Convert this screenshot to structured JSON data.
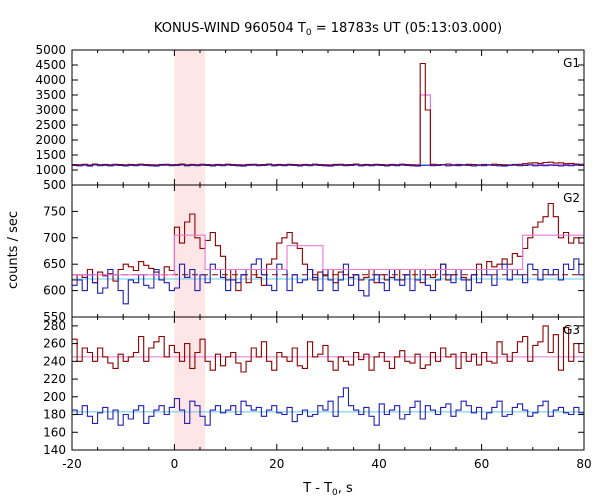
{
  "chart_data": {
    "type": "line",
    "title": {
      "prefix": "KONUS-WIND 960504 T",
      "subscript": "0",
      "suffix": " = 18783s UT (05:13:03.000)"
    },
    "xlabel": {
      "prefix": "T - T",
      "subscript": "0",
      "suffix": ", s"
    },
    "ylabel": "counts / sec",
    "xlim": [
      -20,
      80
    ],
    "xticks": [
      -20,
      0,
      20,
      40,
      60,
      80
    ],
    "highlight_interval": [
      0,
      6
    ],
    "colors": {
      "dark_red": "#8b0000",
      "blue": "#1f1fb4",
      "pink": "#e878d8",
      "cyan": "#66c8e8",
      "shade": "#ffe6e6"
    },
    "panels": [
      {
        "label": "G1",
        "ylim": [
          500,
          5000
        ],
        "yticks": [
          500,
          1000,
          1500,
          2000,
          2500,
          3000,
          3500,
          4000,
          4500,
          5000
        ],
        "bin_start": -20,
        "bin_width": 1,
        "series": [
          {
            "color_key": "dark_red",
            "values": [
              1180,
              1170,
              1190,
              1160,
              1200,
              1175,
              1185,
              1170,
              1190,
              1180,
              1165,
              1185,
              1175,
              1195,
              1180,
              1170,
              1160,
              1185,
              1190,
              1175,
              1180,
              1200,
              1170,
              1185,
              1175,
              1190,
              1180,
              1165,
              1185,
              1175,
              1195,
              1180,
              1170,
              1160,
              1185,
              1190,
              1175,
              1180,
              1200,
              1170,
              1185,
              1175,
              1190,
              1180,
              1165,
              1185,
              1175,
              1195,
              1180,
              1170,
              1160,
              1185,
              1190,
              1175,
              1180,
              1200,
              1170,
              1185,
              1175,
              1190,
              1180,
              1165,
              1185,
              1175,
              1195,
              1180,
              1170,
              1160,
              4550,
              3000,
              1190,
              1175,
              1180,
              1200,
              1170,
              1185,
              1175,
              1190,
              1180,
              1165,
              1185,
              1175,
              1195,
              1180,
              1170,
              1160,
              1185,
              1190,
              1210,
              1230,
              1240,
              1220,
              1250,
              1260,
              1230,
              1240,
              1210,
              1220,
              1200,
              1190
            ]
          },
          {
            "color_key": "blue",
            "values": [
              1150,
              1140,
              1160,
              1130,
              1170,
              1145,
              1155,
              1140,
              1160,
              1150,
              1135,
              1155,
              1145,
              1165,
              1150,
              1140,
              1130,
              1155,
              1160,
              1145,
              1150,
              1170,
              1140,
              1155,
              1145,
              1160,
              1150,
              1135,
              1155,
              1145,
              1165,
              1150,
              1140,
              1130,
              1155,
              1160,
              1145,
              1150,
              1170,
              1140,
              1155,
              1145,
              1160,
              1150,
              1135,
              1155,
              1145,
              1165,
              1150,
              1140,
              1130,
              1155,
              1160,
              1145,
              1150,
              1170,
              1140,
              1155,
              1145,
              1160,
              1150,
              1135,
              1155,
              1145,
              1165,
              1150,
              1140,
              1130,
              1155,
              1160,
              1145,
              1150,
              1170,
              1140,
              1155,
              1145,
              1160,
              1150,
              1135,
              1155,
              1145,
              1165,
              1150,
              1140,
              1130,
              1155,
              1160,
              1145,
              1150,
              1170,
              1140,
              1155,
              1145,
              1160,
              1150,
              1135,
              1155,
              1145,
              1165,
              1150
            ]
          }
        ],
        "step_series": [
          {
            "color_key": "pink",
            "edges": [
              -20,
              48,
              50,
              80
            ],
            "values": [
              1180,
              3500,
              1180
            ]
          }
        ],
        "levels": [
          {
            "color_key": "cyan",
            "value": 1165
          }
        ]
      },
      {
        "label": "G2",
        "ylim": [
          550,
          800
        ],
        "yticks": [
          550,
          600,
          650,
          700,
          750
        ],
        "bin_start": -20,
        "bin_width": 1,
        "series": [
          {
            "color_key": "dark_red",
            "values": [
              620,
              630,
              625,
              640,
              615,
              635,
              628,
              632,
              618,
              640,
              650,
              645,
              638,
              655,
              648,
              642,
              635,
              620,
              645,
              638,
              720,
              690,
              730,
              745,
              700,
              680,
              695,
              710,
              685,
              665,
              620,
              640,
              600,
              630,
              615,
              640,
              625,
              610,
              650,
              660,
              690,
              700,
              710,
              690,
              680,
              650,
              640,
              620,
              635,
              628,
              640,
              615,
              635,
              640,
              625,
              630,
              620,
              625,
              640,
              615,
              630,
              620,
              625,
              640,
              620,
              630,
              640,
              620,
              615,
              630,
              625,
              640,
              650,
              620,
              630,
              640,
              625,
              620,
              630,
              650,
              640,
              655,
              645,
              650,
              660,
              650,
              670,
              665,
              680,
              700,
              720,
              730,
              740,
              765,
              740,
              700,
              710,
              690,
              700,
              690
            ]
          },
          {
            "color_key": "blue",
            "values": [
              610,
              620,
              600,
              630,
              615,
              595,
              605,
              640,
              630,
              600,
              575,
              620,
              615,
              630,
              610,
              605,
              640,
              620,
              615,
              600,
              605,
              650,
              625,
              640,
              600,
              630,
              615,
              650,
              640,
              625,
              600,
              620,
              615,
              630,
              640,
              650,
              660,
              630,
              610,
              600,
              650,
              640,
              600,
              630,
              615,
              620,
              640,
              625,
              600,
              640,
              620,
              600,
              620,
              650,
              610,
              630,
              600,
              590,
              620,
              630,
              615,
              600,
              640,
              620,
              610,
              630,
              600,
              620,
              640,
              610,
              600,
              620,
              650,
              630,
              615,
              640,
              620,
              600,
              630,
              615,
              640,
              630,
              610,
              640,
              650,
              620,
              640,
              630,
              615,
              650,
              640,
              620,
              640,
              630,
              640,
              620,
              650,
              640,
              660,
              630
            ]
          },
          {
            "color_key": "pink",
            "values": [
              630,
              630,
              630,
              630,
              630,
              630,
              630,
              630,
              630,
              630,
              630,
              630,
              630,
              630,
              630,
              630,
              630,
              630,
              630,
              630,
              705,
              705,
              705,
              705,
              705,
              705,
              640,
              640,
              640,
              640,
              640,
              640,
              640,
              640,
              640,
              640,
              640,
              640,
              640,
              640,
              640,
              640,
              685,
              685,
              685,
              685,
              685,
              685,
              685,
              640,
              640,
              640,
              640,
              640,
              640,
              640,
              640,
              640,
              640,
              640,
              640,
              640,
              640,
              640,
              640,
              640,
              640,
              640,
              640,
              640,
              640,
              640,
              640,
              640,
              640,
              640,
              640,
              640,
              640,
              640,
              640,
              640,
              640,
              640,
              640,
              640,
              640,
              640,
              705,
              705,
              705,
              705,
              705,
              705,
              705,
              705,
              705,
              705,
              705,
              705
            ]
          }
        ],
        "levels": [
          {
            "color_key": "dark_red",
            "value": 630,
            "dashed": true
          },
          {
            "color_key": "cyan",
            "value": 622
          }
        ]
      },
      {
        "label": "G3",
        "ylim": [
          140,
          290
        ],
        "yticks": [
          140,
          160,
          180,
          200,
          220,
          240,
          260,
          280
        ],
        "bin_start": -20,
        "bin_width": 1,
        "series": [
          {
            "color_key": "dark_red",
            "values": [
              265,
              240,
              255,
              250,
              240,
              255,
              245,
              238,
              232,
              248,
              240,
              245,
              250,
              268,
              240,
              255,
              262,
              268,
              245,
              258,
              250,
              240,
              260,
              232,
              250,
              265,
              240,
              230,
              248,
              235,
              245,
              250,
              238,
              228,
              240,
              255,
              245,
              262,
              240,
              230,
              250,
              245,
              240,
              255,
              235,
              232,
              262,
              245,
              248,
              258,
              240,
              230,
              245,
              240,
              236,
              250,
              242,
              248,
              230,
              245,
              250,
              240,
              232,
              245,
              252,
              240,
              238,
              248,
              232,
              236,
              250,
              240,
              255,
              245,
              248,
              232,
              250,
              240,
              248,
              236,
              250,
              240,
              238,
              262,
              248,
              240,
              250,
              262,
              268,
              240,
              258,
              262,
              280,
              250,
              270,
              230,
              278,
              240,
              260,
              250
            ]
          },
          {
            "color_key": "blue",
            "values": [
              185,
              180,
              190,
              178,
              170,
              182,
              188,
              175,
              185,
              168,
              180,
              175,
              185,
              190,
              170,
              178,
              185,
              190,
              180,
              188,
              198,
              185,
              170,
              195,
              190,
              178,
              168,
              185,
              190,
              182,
              185,
              190,
              180,
              195,
              190,
              185,
              188,
              178,
              185,
              190,
              182,
              180,
              188,
              172,
              180,
              185,
              178,
              180,
              190,
              185,
              195,
              178,
              200,
              210,
              190,
              185,
              180,
              188,
              178,
              168,
              192,
              180,
              185,
              190,
              175,
              180,
              188,
              195,
              175,
              190,
              185,
              180,
              188,
              192,
              178,
              185,
              195,
              190,
              182,
              188,
              175,
              182,
              188,
              195,
              178,
              180,
              188,
              192,
              185,
              178,
              182,
              190,
              195,
              178,
              185,
              188,
              182,
              180,
              188,
              182
            ]
          }
        ],
        "levels": [
          {
            "color_key": "pink",
            "value": 245
          },
          {
            "color_key": "cyan",
            "value": 183
          }
        ]
      }
    ]
  }
}
